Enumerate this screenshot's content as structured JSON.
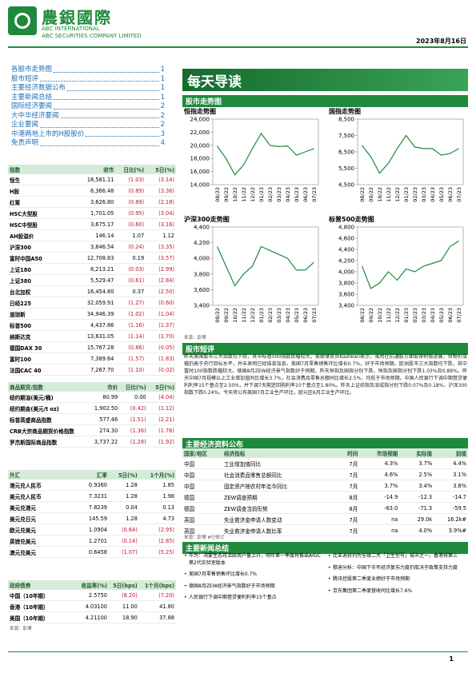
{
  "header": {
    "company_cn": "農銀國際",
    "company_en1": "ABC INTERNATIONAL",
    "company_en2": "ABC SECURITIES COMPANY LIMITED",
    "date": "2023年8月16日"
  },
  "toc": [
    {
      "title": "各股市走势图",
      "page": "1"
    },
    {
      "title": "股市短评",
      "page": "1"
    },
    {
      "title": "主要经济数据公布",
      "page": "1"
    },
    {
      "title": "主要新闻总结",
      "page": "1"
    },
    {
      "title": "国际经济要闻",
      "page": "2"
    },
    {
      "title": "大中华经济要闻",
      "page": "2"
    },
    {
      "title": "企业要闻",
      "page": "2"
    },
    {
      "title": "中港两地上市的H股股价",
      "page": "3"
    },
    {
      "title": "免责声明",
      "page": "4"
    }
  ],
  "banner": "每天导读",
  "market_section": "股市走势图",
  "charts": [
    {
      "type": "line",
      "title": "恒指走势图",
      "categories": [
        "08/22",
        "09/22",
        "10/22",
        "11/22",
        "12/22",
        "01/23",
        "02/23",
        "03/23",
        "04/23",
        "05/23",
        "06/23",
        "07/23"
      ],
      "values": [
        19900,
        18000,
        15500,
        17000,
        19500,
        21800,
        20000,
        19800,
        19900,
        18500,
        19000,
        19500
      ],
      "ylim": [
        14000,
        24000
      ],
      "yticks": [
        {
          "value": 14000,
          "label": "14,000"
        },
        {
          "value": 16000,
          "label": "16,000"
        },
        {
          "value": 18000,
          "label": "18,000"
        },
        {
          "value": 20000,
          "label": "20,000"
        },
        {
          "value": 22000,
          "label": "22,000"
        },
        {
          "value": 24000,
          "label": "24,000"
        }
      ],
      "color": "#1f8a3c"
    },
    {
      "type": "line",
      "title": "国指走势图",
      "categories": [
        "08/22",
        "09/22",
        "10/22",
        "11/22",
        "12/22",
        "01/23",
        "02/23",
        "03/23",
        "04/23",
        "05/23",
        "06/23",
        "07/23"
      ],
      "values": [
        6900,
        6200,
        5200,
        5800,
        6700,
        7500,
        6800,
        6700,
        6700,
        6300,
        6400,
        6700
      ],
      "ylim": [
        4500,
        8500
      ],
      "yticks": [
        {
          "value": 4500,
          "label": "4,500"
        },
        {
          "value": 5500,
          "label": "5,500"
        },
        {
          "value": 6500,
          "label": "6,500"
        },
        {
          "value": 7500,
          "label": "7,500"
        },
        {
          "value": 8500,
          "label": "8,500"
        }
      ],
      "color": "#1f8a3c"
    },
    {
      "type": "line",
      "title": "沪深300走势图",
      "categories": [
        "08/22",
        "09/22",
        "10/22",
        "11/22",
        "12/22",
        "01/23",
        "02/23",
        "03/23",
        "04/23",
        "05/23",
        "06/23",
        "07/23"
      ],
      "values": [
        4150,
        3900,
        3650,
        3800,
        3900,
        4150,
        4100,
        4050,
        4000,
        3850,
        3850,
        3950
      ],
      "ylim": [
        3400,
        4400
      ],
      "yticks": [
        {
          "value": 3400,
          "label": "3,400"
        },
        {
          "value": 3600,
          "label": "3,600"
        },
        {
          "value": 3800,
          "label": "3,800"
        },
        {
          "value": 4000,
          "label": "4,000"
        },
        {
          "value": 4200,
          "label": "4,200"
        },
        {
          "value": 4400,
          "label": "4,400"
        }
      ],
      "color": "#1f8a3c"
    },
    {
      "type": "line",
      "title": "标普500走势图",
      "categories": [
        "08/22",
        "09/22",
        "10/22",
        "11/22",
        "12/22",
        "01/23",
        "02/23",
        "03/23",
        "04/23",
        "05/23",
        "06/23",
        "07/23"
      ],
      "values": [
        4100,
        3700,
        3800,
        4000,
        3850,
        4050,
        4000,
        4100,
        4150,
        4200,
        4450,
        4550
      ],
      "ylim": [
        3400,
        4800
      ],
      "yticks": [
        {
          "value": 3400,
          "label": "3,400"
        },
        {
          "value": 3600,
          "label": "3,600"
        },
        {
          "value": 3800,
          "label": "3,800"
        },
        {
          "value": 4000,
          "label": "4,000"
        },
        {
          "value": 4200,
          "label": "4,200"
        },
        {
          "value": 4400,
          "label": "4,400"
        },
        {
          "value": 4600,
          "label": "4,600"
        },
        {
          "value": 4800,
          "label": "4,800"
        }
      ],
      "color": "#1f8a3c"
    }
  ],
  "chart_source": "来源：彭博",
  "commentary": {
    "title": "股市短评",
    "text": "昨天美国股市三大指数均下跌，其中标普500指数跌幅较大。美联储官员Kashkari表示，虽然在抗通胀方面取得积极进展，但物价涨幅仍高于央行目标水平，并未表明已经结束加息。美国7月零售销售环比增长0.7%，好于市场预期。欧洲股市三大指数均下跌，其中富时100指数跌幅较大。德国8月ZEW经济景气指数好于预期。昨天恒指及国指分别下跌，恒指及国指分别下跌1.03%及0.89%。昨天中国7月规模以上工业增加值同比增长3.7%，社会消费品零售总额同比增长2.5%，均低于市场预期。中国人民银行下调中期借贷便利利率15个基点至2.50%，并下调7天期逆回购利率10个基点至1.80%。昨天上证综指及深成指分别下跌0.07%及0.18%，沪深300指数下跌0.24%。今天将公布美国7月工业生产环比，欧元区6月工业生产环比。"
  },
  "index_table": {
    "header": [
      "指数",
      "收市",
      "日比(%)",
      "5日(%)"
    ],
    "rows": [
      [
        "恒生",
        "18,581.11",
        "(1.03)",
        "(3.14)"
      ],
      [
        "H股",
        "6,366.48",
        "(0.89)",
        "(3.36)"
      ],
      [
        "红筹",
        "3,626.80",
        "(0.89)",
        "(2.18)"
      ],
      [
        "HSC大型股",
        "1,701.05",
        "(0.95)",
        "(3.04)"
      ],
      [
        "HSC中型股",
        "3,675.17",
        "(0.60)",
        "(3.16)"
      ],
      [
        "AH股溢价",
        "146.14",
        "1.07",
        "1.12"
      ],
      [
        "沪深300",
        "3,846.54",
        "(0.24)",
        "(3.35)"
      ],
      [
        "富时中国A50",
        "12,708.83",
        "0.19",
        "(3.57)"
      ],
      [
        "上证180",
        "8,213.21",
        "(0.03)",
        "(2.99)"
      ],
      [
        "上证380",
        "5,529.47",
        "(0.61)",
        "(2.84)"
      ],
      [
        "台北加权",
        "16,454.80",
        "0.37",
        "(2.50)"
      ],
      [
        "日经225",
        "32,059.91",
        "(1.27)",
        "(0.60)"
      ],
      [
        "道琼斯",
        "34,946.39",
        "(1.02)",
        "(1.04)"
      ],
      [
        "标普500",
        "4,437.86",
        "(1.16)",
        "(1.37)"
      ],
      [
        "纳斯达克",
        "13,631.05",
        "(1.14)",
        "(1.70)"
      ],
      [
        "德国DAX 30",
        "15,767.28",
        "(0.86)",
        "(0.05)"
      ],
      [
        "富时100",
        "7,389.64",
        "(1.57)",
        "(1.83)"
      ],
      [
        "法国CAC 40",
        "7,267.70",
        "(1.10)",
        "(0.02)"
      ]
    ]
  },
  "commodity_table": {
    "header": [
      "商品期货/指数",
      "市价",
      "日比(%)",
      "5日(%)"
    ],
    "rows": [
      [
        "纽约期油(美元/桶)",
        "80.99",
        "0.00",
        "(4.04)"
      ],
      [
        "纽约期金(美元/t oz)",
        "1,902.50",
        "(0.42)",
        "(1.12)"
      ],
      [
        "标普高盛商品指数",
        "577.46",
        "(1.51)",
        "(2.21)"
      ],
      [
        "CRB大宗商品期货价格指数",
        "274.30",
        "(1.36)",
        "(1.76)"
      ],
      [
        "罗杰斯国际商品指数",
        "3,737.22",
        "(1.28)",
        "(1.92)"
      ]
    ]
  },
  "fx_table": {
    "header": [
      "外汇",
      "汇率",
      "5日(%)",
      "1个月(%)"
    ],
    "rows": [
      [
        "港元兑人民币",
        "0.9360",
        "1.28",
        "1.85"
      ],
      [
        "美元兑人民币",
        "7.3231",
        "1.28",
        "1.98"
      ],
      [
        "美元兑港元",
        "7.8239",
        "0.04",
        "0.13"
      ],
      [
        "美元兑日元",
        "145.59",
        "1.28",
        "4.73"
      ],
      [
        "欧元兑美元",
        "1.0904",
        "(0.64)",
        "(2.95)"
      ],
      [
        "英镑兑美元",
        "1.2701",
        "(0.14)",
        "(2.85)"
      ],
      [
        "澳元兑美元",
        "0.6458",
        "(1.07)",
        "(5.25)"
      ]
    ]
  },
  "bond_table": {
    "header": [
      "政府债券",
      "收益率(%)",
      "5日(bps)",
      "1个月(bps)"
    ],
    "rows": [
      [
        "中国（10年期）",
        "2.5750",
        "(8.20)",
        "(7.20)"
      ],
      [
        "香港（10年期）",
        "4.03100",
        "11.00",
        "41.80"
      ],
      [
        "美国（10年期）",
        "4.21100",
        "18.90",
        "37.88"
      ]
    ]
  },
  "left_source": "来源：彭博",
  "econ": {
    "title": "主要经济资料公布",
    "header": [
      "国家/地区",
      "经济指标",
      "时间",
      "市场预期",
      "实际值",
      "前值"
    ],
    "rows": [
      [
        "中国",
        "工业增加值同比",
        "7月",
        "4.3%",
        "3.7%",
        "4.4%"
      ],
      [
        "中国",
        "社会消费品零售总额同比",
        "7月",
        "4.6%",
        "2.5%",
        "3.1%"
      ],
      [
        "中国",
        "固定资产除农村年迄今同比",
        "7月",
        "3.7%",
        "3.4%",
        "3.8%"
      ],
      [
        "德国",
        "ZEW调查预期",
        "8月",
        "-14.9",
        "-12.3",
        "-14.7"
      ],
      [
        "德国",
        "ZEW调查当前形势",
        "8月",
        "-63.0",
        "-71.3",
        "-59.5"
      ],
      [
        "英国",
        "失业救济金申请人数变动",
        "7月",
        "na",
        "29.0k",
        "16.2k#"
      ],
      [
        "英国",
        "失业救济金申请人数比率",
        "7月",
        "na",
        "4.0%",
        "3.9%#"
      ]
    ],
    "note": "来源：彭博  #已修订"
  },
  "news": {
    "title": "主要新闻总结",
    "left": [
      "华为：鸿蒙生态月活跃用户量上升，明年第一季度将推出AIGC 第2代实验室版本",
      "美国7月零售销售环比增长0.7%",
      "德国8月ZEW经济景气指数好于市场预期",
      "人民银行下调中期借贷便利利率15个基点"
    ],
    "right": [
      "比亚迪获列为全球二大「卫生型号」城市之一，香港排第三",
      "穆迪分析：中国下半年经济复苏力度仍取决于政策支持力度",
      "腾讯控股第二季度业绩好于市场预期",
      "京东集团第二季度营收同比增长7.6%"
    ]
  },
  "page_number": "1"
}
